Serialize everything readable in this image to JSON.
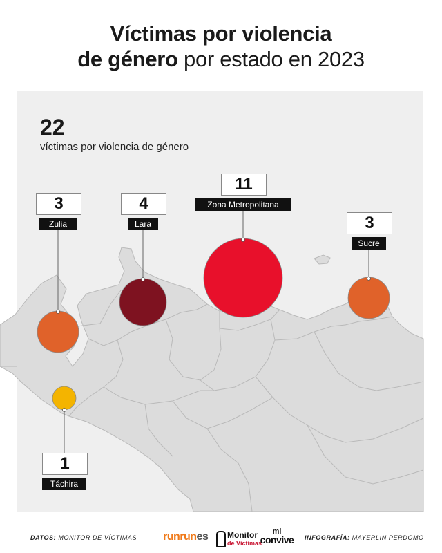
{
  "title": {
    "line1": "Víctimas por violencia",
    "line2_bold": "de género",
    "line2_rest": " por estado en 2023"
  },
  "summary": {
    "total": "22",
    "label": "víctimas por violencia de género"
  },
  "map": {
    "region": "Venezuela",
    "markers": [
      {
        "id": "zulia",
        "state": "Zulia",
        "value": "3",
        "color": "#e0622a"
      },
      {
        "id": "lara",
        "state": "Lara",
        "value": "4",
        "color": "#7e1220"
      },
      {
        "id": "metro",
        "state": "Zona Metropolitana",
        "value": "11",
        "color": "#e8102b"
      },
      {
        "id": "sucre",
        "state": "Sucre",
        "value": "3",
        "color": "#e0622a"
      },
      {
        "id": "tachira",
        "state": "Táchira",
        "value": "1",
        "color": "#f4b400"
      }
    ]
  },
  "footer": {
    "source_label": "DATOS:",
    "source_value": " MONITOR DE VÍCTIMAS",
    "credit_label": "INFOGRAFÍA:",
    "credit_value": " MAYERLIN PERDOMO",
    "logos": {
      "runrun": "runrun",
      "runrun_suffix": "es",
      "monitor_line1": "Monitor",
      "monitor_line2": "de Víctimas",
      "convive_line1": "mi",
      "convive_line2": "convive"
    }
  }
}
